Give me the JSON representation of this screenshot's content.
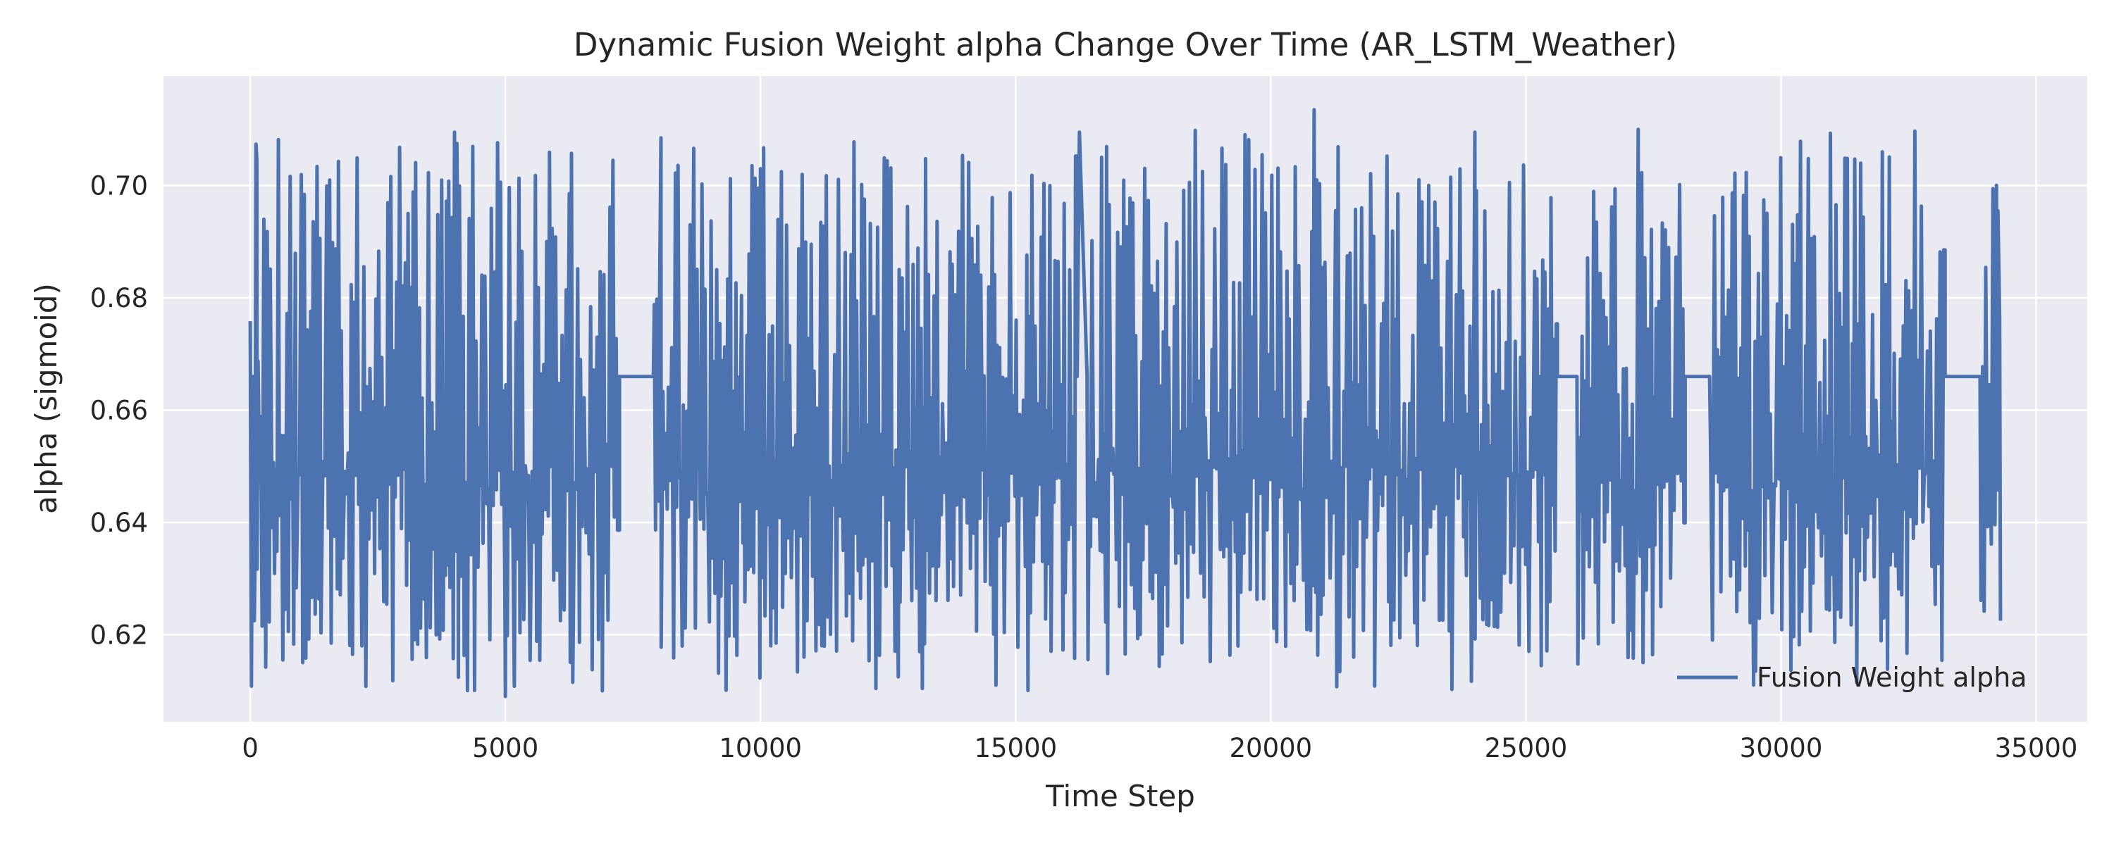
{
  "chart_data": {
    "type": "line",
    "title": "Dynamic Fusion Weight alpha Change Over Time (AR_LSTM_Weather)",
    "xlabel": "Time Step",
    "ylabel": "alpha (sigmoid)",
    "xlim": [
      -1700,
      36000
    ],
    "ylim": [
      0.6045,
      0.7195
    ],
    "xticks": [
      0,
      5000,
      10000,
      15000,
      20000,
      25000,
      30000,
      35000
    ],
    "xtick_labels": [
      "0",
      "5000",
      "10000",
      "15000",
      "20000",
      "25000",
      "30000",
      "35000"
    ],
    "yticks": [
      0.62,
      0.64,
      0.66,
      0.68,
      0.7
    ],
    "ytick_labels": [
      "0.62",
      "0.64",
      "0.66",
      "0.68",
      "0.70"
    ],
    "grid": true,
    "legend_position": "lower-right",
    "background_color": "#eaeaf2",
    "series": [
      {
        "name": "Fusion Weight alpha",
        "color": "#4c72b0",
        "x_start": 0,
        "x_end": 34300,
        "n_points": 34300,
        "range": [
          0.609,
          0.713
        ],
        "plateau_value": 0.666,
        "plateau_segments": [
          [
            7200,
            7900
          ],
          [
            16200,
            16400
          ],
          [
            25600,
            26000
          ],
          [
            28100,
            28600
          ],
          [
            33200,
            33900
          ]
        ],
        "notable_points": [
          {
            "x": 50,
            "y": 0.666
          },
          {
            "x": 80,
            "y": 0.6225
          },
          {
            "x": 130,
            "y": 0.7045
          },
          {
            "x": 4050,
            "y": 0.7075
          },
          {
            "x": 5000,
            "y": 0.609
          },
          {
            "x": 6900,
            "y": 0.61
          },
          {
            "x": 8050,
            "y": 0.7085
          },
          {
            "x": 10000,
            "y": 0.703
          },
          {
            "x": 12700,
            "y": 0.6125
          },
          {
            "x": 16250,
            "y": 0.7095
          },
          {
            "x": 20850,
            "y": 0.7135
          },
          {
            "x": 24000,
            "y": 0.7095
          },
          {
            "x": 25300,
            "y": 0.6145
          },
          {
            "x": 27200,
            "y": 0.71
          },
          {
            "x": 29500,
            "y": 0.6135
          },
          {
            "x": 34250,
            "y": 0.6955
          },
          {
            "x": 34300,
            "y": 0.6225
          }
        ]
      }
    ]
  }
}
